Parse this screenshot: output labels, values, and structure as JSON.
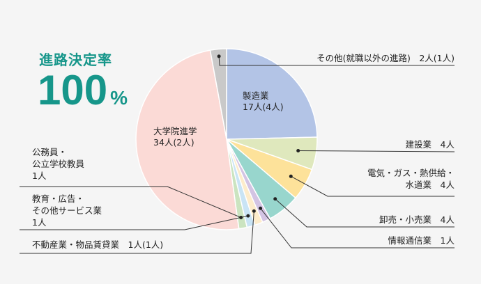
{
  "headline": {
    "title": "進路決定率",
    "rate": "100",
    "rate_unit": "%"
  },
  "chart_data": {
    "type": "pie",
    "start": "top",
    "direction": "clockwise",
    "slices": [
      {
        "id": "seizo",
        "value": 17,
        "color": "#b3c4e6",
        "label_lines": [
          "製造業",
          "17人(4人)"
        ]
      },
      {
        "id": "kensetsu",
        "value": 4,
        "color": "#dfe8bd",
        "label_lines": [
          "建設業　4人"
        ]
      },
      {
        "id": "denki",
        "value": 4,
        "color": "#fde29a",
        "label_lines": [
          "電気・ガス・熱供給・",
          "水道業　4人"
        ]
      },
      {
        "id": "oroshi",
        "value": 4,
        "color": "#98d6cd",
        "label_lines": [
          "卸売・小売業　4人"
        ]
      },
      {
        "id": "joho",
        "value": 1,
        "color": "#d3c4e3",
        "label_lines": [
          "情報通信業　1人"
        ]
      },
      {
        "id": "fudosan",
        "value": 1,
        "color": "#fdeccb",
        "label_lines": [
          "不動産業・物品賃貸業　1人(1人)"
        ]
      },
      {
        "id": "kyoiku",
        "value": 1,
        "color": "#c9e4f5",
        "label_lines": [
          "教育・広告・",
          "その他サービス業",
          "1人"
        ]
      },
      {
        "id": "komuin",
        "value": 1,
        "color": "#cbe4c0",
        "label_lines": [
          "公務員・",
          "公立学校教員",
          "1人"
        ]
      },
      {
        "id": "daigaku",
        "value": 34,
        "color": "#fbdad6",
        "label_lines": [
          "大学院進学",
          "34人(2人)"
        ]
      },
      {
        "id": "sonota",
        "value": 2,
        "color": "#c9c9c9",
        "label_lines": [
          "その他(就職以外の進路)　2人(1人)"
        ]
      }
    ]
  }
}
